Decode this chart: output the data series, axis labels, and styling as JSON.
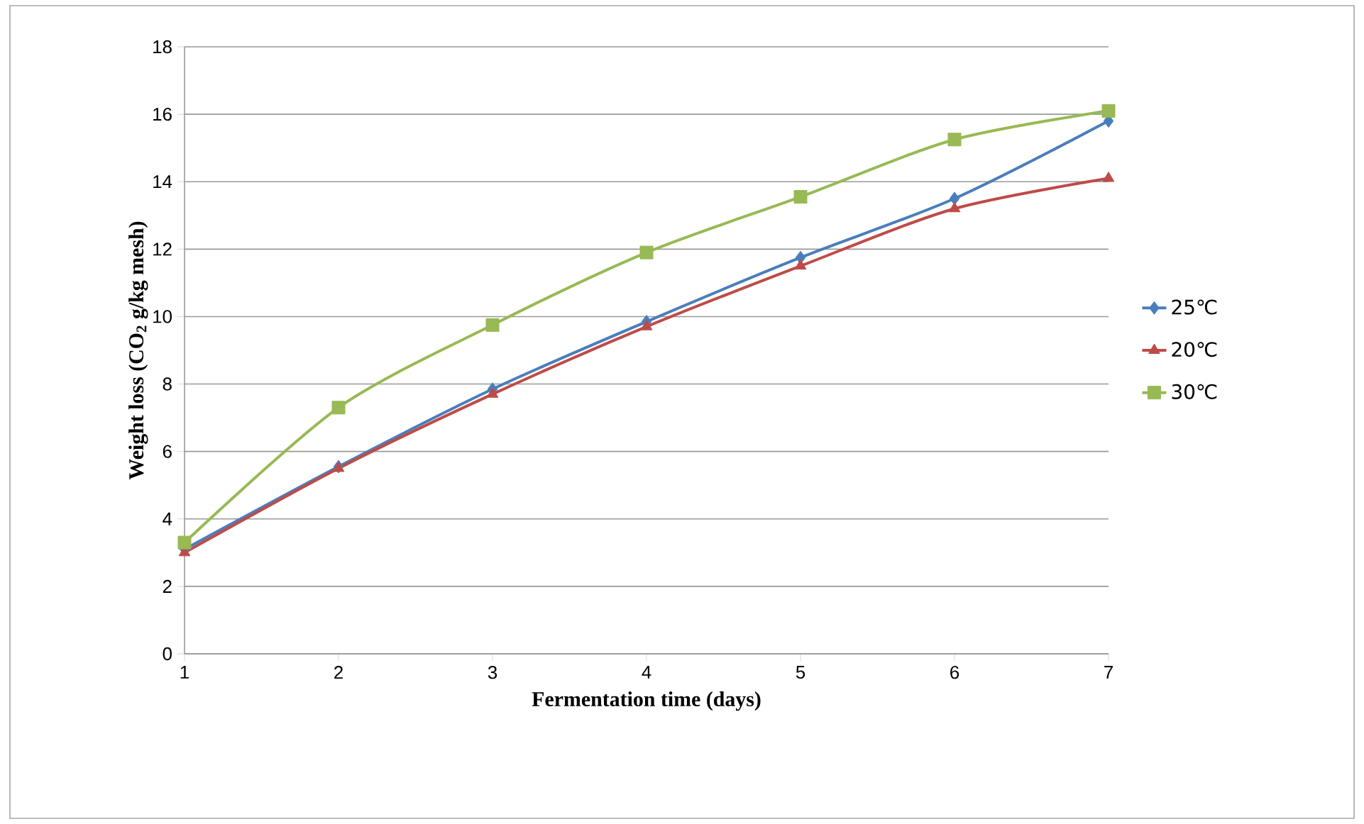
{
  "chart_data": {
    "type": "line",
    "xlabel": "Fermentation  time (days)",
    "ylabel": "Weight  loss (CO$_{2}$ g/kg mesh)",
    "x": [
      1,
      2,
      3,
      4,
      5,
      6,
      7
    ],
    "series": [
      {
        "name": "25℃",
        "color": "#4a7ebb",
        "marker": "diamond",
        "values": [
          3.1,
          5.55,
          7.85,
          9.85,
          11.75,
          13.5,
          15.8
        ]
      },
      {
        "name": "20℃",
        "color": "#be4b48",
        "marker": "triangle",
        "values": [
          3.0,
          5.5,
          7.7,
          9.7,
          11.5,
          13.2,
          14.1
        ]
      },
      {
        "name": "30℃",
        "color": "#98b954",
        "marker": "square",
        "values": [
          3.3,
          7.3,
          9.75,
          11.9,
          13.55,
          15.25,
          16.1
        ]
      }
    ],
    "xlim": [
      1,
      7
    ],
    "xticks": [
      1,
      2,
      3,
      4,
      5,
      6,
      7
    ],
    "ylim": [
      0,
      18
    ],
    "yticks": [
      0,
      2,
      4,
      6,
      8,
      10,
      12,
      14,
      16,
      18
    ],
    "grid": "y",
    "legend": "right",
    "line_style": "solid"
  }
}
